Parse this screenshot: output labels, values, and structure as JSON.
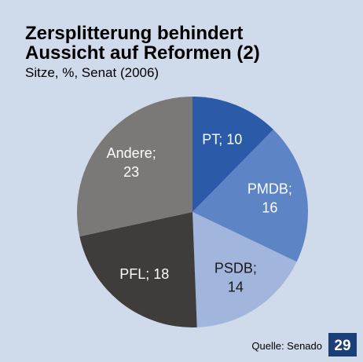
{
  "chart_data": {
    "type": "pie",
    "title": [
      "Zersplitterung behindert",
      "Aussicht auf Reformen (2)"
    ],
    "subtitle": "Sitze, %, Senat (2006)",
    "values": [
      10,
      16,
      14,
      18,
      23
    ],
    "value_labels": [
      [
        "PT; 10"
      ],
      [
        "PMDB;",
        "16"
      ],
      [
        "PSDB;",
        "14"
      ],
      [
        "PFL; 18"
      ],
      [
        "Andere;",
        "23"
      ]
    ],
    "colors": [
      "#2b5aa8",
      "#5d84c5",
      "#a2b5dd",
      "#3f3c3c",
      "#7b7978"
    ],
    "label_colors": [
      "#ffffff",
      "#ffffff",
      "#1a1a1a",
      "#ffffff",
      "#ffffff"
    ],
    "source": "Quelle: Senado",
    "page_number": "29"
  }
}
